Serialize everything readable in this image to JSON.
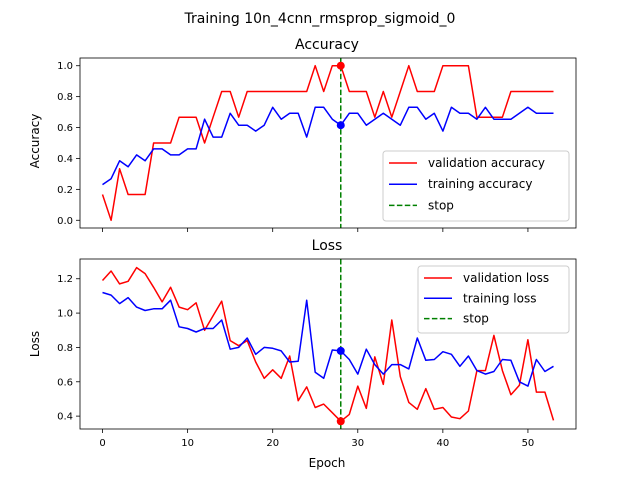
{
  "figure_title": "Training 10n_4cnn_rmsprop_sigmoid_0",
  "colors": {
    "validation": "#ff0000",
    "training": "#0000ff",
    "stop": "#008000"
  },
  "chart_data": [
    {
      "type": "line",
      "title": "Accuracy",
      "xlabel": "",
      "ylabel": "Accuracy",
      "xlim": [
        -2.65,
        55.65
      ],
      "ylim": [
        -0.05,
        1.05
      ],
      "xticks": [
        0,
        10,
        20,
        30,
        40,
        50
      ],
      "xtick_labels_visible": false,
      "yticks": [
        0.0,
        0.2,
        0.4,
        0.6,
        0.8,
        1.0
      ],
      "ytick_labels": [
        "0.0",
        "0.2",
        "0.4",
        "0.6",
        "0.8",
        "1.0"
      ],
      "legend_position": "lower-right",
      "legend": [
        "validation accuracy",
        "training accuracy",
        "stop"
      ],
      "stop_epoch": 28,
      "stop_markers": [
        {
          "series": "validation",
          "x": 28,
          "y": 1.0
        },
        {
          "series": "training",
          "x": 28,
          "y": 0.615
        }
      ],
      "series": [
        {
          "name": "validation accuracy",
          "color": "#ff0000",
          "x": [
            0,
            1,
            2,
            3,
            4,
            5,
            6,
            7,
            8,
            9,
            10,
            11,
            12,
            13,
            14,
            15,
            16,
            17,
            18,
            19,
            20,
            21,
            22,
            23,
            24,
            25,
            26,
            27,
            28,
            29,
            30,
            31,
            32,
            33,
            34,
            35,
            36,
            37,
            38,
            39,
            40,
            41,
            42,
            43,
            44,
            45,
            46,
            47,
            48,
            49,
            50,
            51,
            52,
            53
          ],
          "y": [
            0.167,
            0.0,
            0.333,
            0.167,
            0.167,
            0.167,
            0.5,
            0.5,
            0.5,
            0.667,
            0.667,
            0.667,
            0.5,
            0.667,
            0.833,
            0.833,
            0.667,
            0.833,
            0.833,
            0.833,
            0.833,
            0.833,
            0.833,
            0.833,
            0.833,
            1.0,
            0.833,
            1.0,
            1.0,
            0.833,
            0.833,
            0.833,
            0.667,
            0.833,
            0.667,
            0.833,
            1.0,
            0.833,
            0.833,
            0.833,
            1.0,
            1.0,
            1.0,
            1.0,
            0.667,
            0.667,
            0.667,
            0.667,
            0.833,
            0.833,
            0.833,
            0.833,
            0.833,
            0.833
          ]
        },
        {
          "name": "training accuracy",
          "color": "#0000ff",
          "x": [
            0,
            1,
            2,
            3,
            4,
            5,
            6,
            7,
            8,
            9,
            10,
            11,
            12,
            13,
            14,
            15,
            16,
            17,
            18,
            19,
            20,
            21,
            22,
            23,
            24,
            25,
            26,
            27,
            28,
            29,
            30,
            31,
            32,
            33,
            34,
            35,
            36,
            37,
            38,
            39,
            40,
            41,
            42,
            43,
            44,
            45,
            46,
            47,
            48,
            49,
            50,
            51,
            52,
            53
          ],
          "y": [
            0.231,
            0.269,
            0.385,
            0.346,
            0.423,
            0.385,
            0.462,
            0.462,
            0.423,
            0.423,
            0.462,
            0.462,
            0.654,
            0.538,
            0.538,
            0.692,
            0.615,
            0.615,
            0.577,
            0.615,
            0.731,
            0.654,
            0.692,
            0.692,
            0.538,
            0.731,
            0.731,
            0.654,
            0.615,
            0.692,
            0.692,
            0.615,
            0.654,
            0.692,
            0.654,
            0.615,
            0.731,
            0.731,
            0.654,
            0.692,
            0.577,
            0.731,
            0.692,
            0.692,
            0.654,
            0.731,
            0.654,
            0.654,
            0.654,
            0.692,
            0.731,
            0.692,
            0.692,
            0.692
          ]
        }
      ]
    },
    {
      "type": "line",
      "title": "Loss",
      "xlabel": "Epoch",
      "ylabel": "Loss",
      "xlim": [
        -2.65,
        55.65
      ],
      "ylim": [
        0.325,
        1.315
      ],
      "xticks": [
        0,
        10,
        20,
        30,
        40,
        50
      ],
      "xtick_labels": [
        "0",
        "10",
        "20",
        "30",
        "40",
        "50"
      ],
      "yticks": [
        0.4,
        0.6,
        0.8,
        1.0,
        1.2
      ],
      "ytick_labels": [
        "0.4",
        "0.6",
        "0.8",
        "1.0",
        "1.2"
      ],
      "legend_position": "top-right",
      "legend": [
        "validation loss",
        "training loss",
        "stop"
      ],
      "stop_epoch": 28,
      "stop_markers": [
        {
          "series": "validation",
          "x": 28,
          "y": 0.37
        },
        {
          "series": "training",
          "x": 28,
          "y": 0.78
        }
      ],
      "series": [
        {
          "name": "validation loss",
          "color": "#ff0000",
          "x": [
            0,
            1,
            2,
            3,
            4,
            5,
            6,
            7,
            8,
            9,
            10,
            11,
            12,
            13,
            14,
            15,
            16,
            17,
            18,
            19,
            20,
            21,
            22,
            23,
            24,
            25,
            26,
            27,
            28,
            29,
            30,
            31,
            32,
            33,
            34,
            35,
            36,
            37,
            38,
            39,
            40,
            41,
            42,
            43,
            44,
            45,
            46,
            47,
            48,
            49,
            50,
            51,
            52,
            53
          ],
          "y": [
            1.19,
            1.245,
            1.17,
            1.185,
            1.265,
            1.23,
            1.15,
            1.065,
            1.15,
            1.035,
            1.02,
            1.06,
            0.9,
            0.985,
            1.07,
            0.84,
            0.81,
            0.84,
            0.715,
            0.62,
            0.67,
            0.62,
            0.75,
            0.49,
            0.57,
            0.45,
            0.47,
            0.42,
            0.37,
            0.41,
            0.575,
            0.445,
            0.745,
            0.585,
            0.96,
            0.63,
            0.48,
            0.44,
            0.56,
            0.44,
            0.45,
            0.395,
            0.385,
            0.43,
            0.665,
            0.665,
            0.87,
            0.665,
            0.525,
            0.58,
            0.845,
            0.54,
            0.54,
            0.375
          ]
        },
        {
          "name": "training loss",
          "color": "#0000ff",
          "x": [
            0,
            1,
            2,
            3,
            4,
            5,
            6,
            7,
            8,
            9,
            10,
            11,
            12,
            13,
            14,
            15,
            16,
            17,
            18,
            19,
            20,
            21,
            22,
            23,
            24,
            25,
            26,
            27,
            28,
            29,
            30,
            31,
            32,
            33,
            34,
            35,
            36,
            37,
            38,
            39,
            40,
            41,
            42,
            43,
            44,
            45,
            46,
            47,
            48,
            49,
            50,
            51,
            52,
            53
          ],
          "y": [
            1.12,
            1.105,
            1.055,
            1.09,
            1.035,
            1.015,
            1.025,
            1.025,
            1.075,
            0.92,
            0.91,
            0.89,
            0.91,
            0.91,
            0.96,
            0.79,
            0.8,
            0.855,
            0.76,
            0.8,
            0.795,
            0.78,
            0.715,
            0.72,
            1.075,
            0.655,
            0.62,
            0.785,
            0.78,
            0.73,
            0.645,
            0.79,
            0.7,
            0.645,
            0.7,
            0.7,
            0.675,
            0.855,
            0.725,
            0.73,
            0.775,
            0.76,
            0.69,
            0.75,
            0.665,
            0.645,
            0.66,
            0.73,
            0.725,
            0.6,
            0.575,
            0.73,
            0.66,
            0.69
          ]
        }
      ]
    }
  ]
}
